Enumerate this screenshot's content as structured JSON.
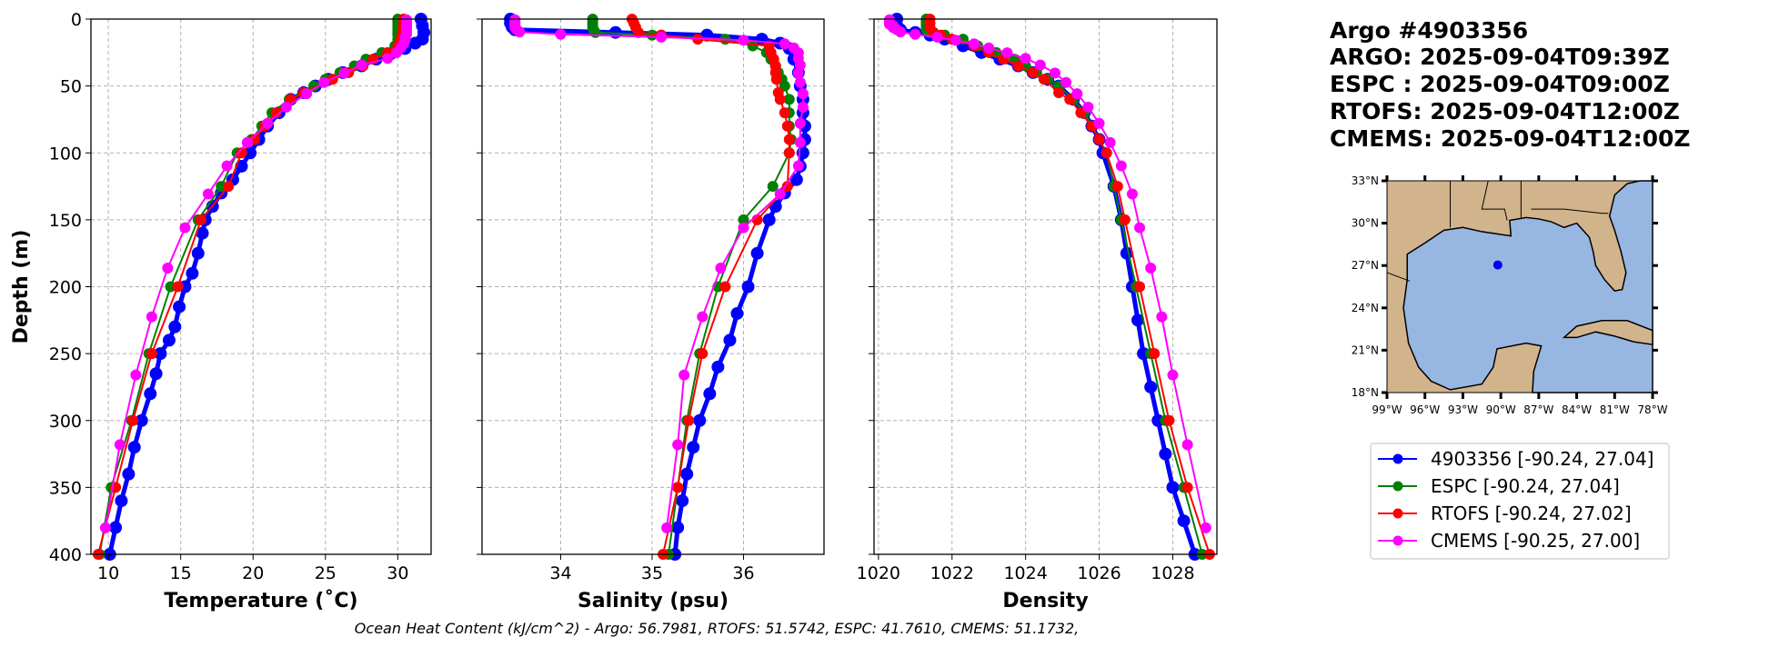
{
  "title": {
    "lines": [
      "Argo #4903356",
      "ARGO: 2025-09-04T09:39Z",
      "ESPC : 2025-09-04T09:00Z",
      "RTOFS: 2025-09-04T12:00Z",
      "CMEMS: 2025-09-04T12:00Z"
    ]
  },
  "footer": {
    "ohc_text": "Ocean Heat Content (kJ/cm^2) - Argo: 56.7981,  RTOFS: 51.5742,  ESPC: 41.7610,  CMEMS: 51.1732,"
  },
  "legend": {
    "placement": "right",
    "entries": [
      {
        "label": "4903356 [-90.24, 27.04]",
        "color": "#0000ff"
      },
      {
        "label": "ESPC [-90.24, 27.04]",
        "color": "#008000"
      },
      {
        "label": "RTOFS [-90.24, 27.02]",
        "color": "#ff0000"
      },
      {
        "label": "CMEMS [-90.25, 27.00]",
        "color": "#ff00ff"
      }
    ]
  },
  "map": {
    "lon_range": [
      -99,
      -78
    ],
    "lat_range": [
      18,
      33
    ],
    "lat_ticks": [
      "18°N",
      "21°N",
      "24°N",
      "27°N",
      "30°N",
      "33°N"
    ],
    "lon_ticks": [
      "99°W",
      "96°W",
      "93°W",
      "90°W",
      "87°W",
      "84°W",
      "81°W",
      "78°W"
    ],
    "float_position": {
      "lon": -90.24,
      "lat": 27.04
    },
    "land_color": "#d2b48c",
    "water_color": "#97b6e1",
    "marker_color": "#0000ff"
  },
  "chart_data": [
    {
      "type": "line",
      "xlabel": "Temperature (˚C)",
      "ylabel": "Depth (m)",
      "xlim": [
        8.8,
        32.3
      ],
      "ylim": [
        400,
        0
      ],
      "xticks": [
        10,
        15,
        20,
        25,
        30
      ],
      "yticks": [
        0,
        50,
        100,
        150,
        200,
        250,
        300,
        350,
        400
      ],
      "grid": true,
      "series": [
        {
          "name": "4903356",
          "color": "#0000ff",
          "depth": [
            0,
            5,
            10,
            15,
            18,
            22,
            26,
            30,
            35,
            40,
            45,
            50,
            55,
            60,
            70,
            80,
            90,
            100,
            110,
            120,
            130,
            140,
            150,
            160,
            175,
            190,
            200,
            215,
            230,
            240,
            250,
            265,
            280,
            300,
            320,
            340,
            360,
            380,
            400
          ],
          "values": [
            31.6,
            31.7,
            31.8,
            31.7,
            31.2,
            30.5,
            29.5,
            28.5,
            27.5,
            26.2,
            25.2,
            24.3,
            23.5,
            22.6,
            21.8,
            21.0,
            20.4,
            19.8,
            19.2,
            18.6,
            17.8,
            17.2,
            16.7,
            16.5,
            16.2,
            15.8,
            15.3,
            14.9,
            14.6,
            14.2,
            13.6,
            13.3,
            12.9,
            12.3,
            11.8,
            11.4,
            10.9,
            10.5,
            10.1
          ]
        },
        {
          "name": "ESPC",
          "color": "#008000",
          "depth": [
            0,
            2,
            4,
            6,
            8,
            10,
            12,
            15,
            20,
            25,
            30,
            35,
            40,
            45,
            50,
            60,
            70,
            80,
            90,
            100,
            125,
            150,
            200,
            250,
            300,
            350,
            400
          ],
          "values": [
            30.0,
            30.0,
            30.0,
            30.0,
            30.0,
            30.0,
            30.0,
            30.0,
            29.8,
            28.9,
            27.8,
            27.0,
            26.0,
            25.0,
            24.2,
            22.5,
            21.3,
            20.6,
            19.9,
            18.9,
            17.8,
            16.2,
            14.3,
            12.8,
            11.6,
            10.2,
            9.4
          ]
        },
        {
          "name": "RTOFS",
          "color": "#ff0000",
          "depth": [
            0,
            3,
            6,
            10,
            15,
            20,
            25,
            30,
            35,
            40,
            45,
            55,
            60,
            70,
            80,
            90,
            100,
            125,
            150,
            200,
            250,
            300,
            350,
            400
          ],
          "values": [
            30.4,
            30.4,
            30.4,
            30.3,
            30.2,
            30.0,
            29.3,
            28.3,
            27.6,
            26.6,
            25.5,
            23.5,
            22.6,
            21.6,
            20.8,
            20.1,
            19.2,
            18.3,
            16.4,
            14.8,
            13.0,
            11.7,
            10.5,
            9.3
          ]
        },
        {
          "name": "CMEMS",
          "color": "#ff00ff",
          "depth": [
            0.5,
            1.5,
            2.6,
            3.8,
            5.1,
            6.4,
            7.9,
            9.6,
            11.4,
            13.5,
            15.8,
            18.5,
            21.6,
            25.2,
            29.4,
            34.4,
            40.3,
            47.4,
            55.8,
            65.8,
            77.9,
            92.3,
            109.7,
            130.7,
            155.9,
            186.1,
            222.5,
            266.0,
            318.1,
            380.2
          ],
          "values": [
            30.6,
            30.6,
            30.6,
            30.6,
            30.6,
            30.6,
            30.6,
            30.6,
            30.6,
            30.5,
            30.5,
            30.4,
            30.2,
            29.9,
            29.3,
            27.5,
            26.3,
            24.9,
            23.7,
            22.3,
            21.0,
            19.6,
            18.2,
            16.9,
            15.3,
            14.1,
            13.0,
            11.9,
            10.8,
            9.8
          ]
        }
      ]
    },
    {
      "type": "line",
      "xlabel": "Salinity (psu)",
      "ylabel": "",
      "xlim": [
        33.14,
        36.88
      ],
      "ylim": [
        400,
        0
      ],
      "xticks": [
        34,
        35,
        36
      ],
      "yticks": [
        0,
        50,
        100,
        150,
        200,
        250,
        300,
        350,
        400
      ],
      "grid": true,
      "series": [
        {
          "name": "4903356",
          "color": "#0000ff",
          "depth": [
            0,
            3,
            6,
            8,
            10,
            12,
            15,
            18,
            22,
            30,
            40,
            50,
            60,
            70,
            80,
            90,
            100,
            110,
            120,
            130,
            140,
            150,
            175,
            200,
            220,
            240,
            260,
            280,
            300,
            320,
            340,
            360,
            380,
            400
          ],
          "values": [
            33.45,
            33.45,
            33.47,
            33.5,
            34.6,
            35.6,
            36.2,
            36.4,
            36.5,
            36.55,
            36.6,
            36.62,
            36.65,
            36.65,
            36.67,
            36.67,
            36.65,
            36.62,
            36.58,
            36.45,
            36.35,
            36.28,
            36.15,
            36.05,
            35.93,
            35.85,
            35.72,
            35.63,
            35.52,
            35.45,
            35.38,
            35.33,
            35.28,
            35.25
          ]
        },
        {
          "name": "ESPC",
          "color": "#008000",
          "depth": [
            0,
            2,
            4,
            6,
            8,
            10,
            12,
            15,
            20,
            25,
            30,
            35,
            40,
            45,
            50,
            60,
            70,
            80,
            90,
            100,
            125,
            150,
            200,
            250,
            300,
            350,
            400
          ],
          "values": [
            34.35,
            34.35,
            34.35,
            34.35,
            34.36,
            34.38,
            35.0,
            35.8,
            36.1,
            36.25,
            36.3,
            36.35,
            36.38,
            36.42,
            36.45,
            36.5,
            36.5,
            36.5,
            36.52,
            36.5,
            36.32,
            36.0,
            35.72,
            35.52,
            35.38,
            35.28,
            35.18
          ]
        },
        {
          "name": "RTOFS",
          "color": "#ff0000",
          "depth": [
            0,
            3,
            6,
            10,
            12,
            15,
            20,
            25,
            30,
            35,
            40,
            45,
            55,
            60,
            70,
            80,
            90,
            100,
            125,
            150,
            200,
            250,
            300,
            350,
            400
          ],
          "values": [
            34.78,
            34.8,
            34.82,
            34.85,
            35.1,
            35.5,
            36.28,
            36.3,
            36.33,
            36.35,
            36.35,
            36.36,
            36.38,
            36.4,
            36.45,
            36.48,
            36.5,
            36.5,
            36.48,
            36.15,
            35.8,
            35.55,
            35.4,
            35.28,
            35.12
          ]
        },
        {
          "name": "CMEMS",
          "color": "#ff00ff",
          "depth": [
            0.5,
            1.5,
            2.6,
            3.8,
            5.1,
            6.4,
            7.9,
            9.6,
            11.4,
            13.5,
            15.8,
            18.5,
            21.6,
            25.2,
            29.4,
            34.4,
            40.3,
            47.4,
            55.8,
            65.8,
            77.9,
            92.3,
            109.7,
            130.7,
            155.9,
            186.1,
            222.5,
            266.0,
            318.1,
            380.2
          ],
          "values": [
            33.5,
            33.5,
            33.5,
            33.5,
            33.5,
            33.5,
            33.52,
            33.55,
            34.0,
            35.1,
            36.0,
            36.45,
            36.55,
            36.6,
            36.6,
            36.62,
            36.6,
            36.62,
            36.65,
            36.65,
            36.62,
            36.62,
            36.6,
            36.4,
            36.0,
            35.75,
            35.55,
            35.35,
            35.28,
            35.16
          ]
        }
      ]
    },
    {
      "type": "line",
      "xlabel": "Density",
      "ylabel": "",
      "xlim": [
        1019.88,
        1029.2
      ],
      "ylim": [
        400,
        0
      ],
      "xticks": [
        1020,
        1022,
        1024,
        1026,
        1028
      ],
      "yticks": [
        0,
        50,
        100,
        150,
        200,
        250,
        300,
        350,
        400
      ],
      "grid": true,
      "series": [
        {
          "name": "4903356",
          "color": "#0000ff",
          "depth": [
            0,
            5,
            8,
            10,
            12,
            15,
            20,
            25,
            30,
            35,
            40,
            45,
            50,
            60,
            70,
            80,
            90,
            100,
            125,
            150,
            175,
            200,
            225,
            250,
            275,
            300,
            325,
            350,
            375,
            400
          ],
          "values": [
            1020.5,
            1020.5,
            1020.6,
            1021.0,
            1021.4,
            1021.8,
            1022.3,
            1022.8,
            1023.3,
            1023.8,
            1024.2,
            1024.6,
            1024.9,
            1025.3,
            1025.6,
            1025.8,
            1026.0,
            1026.1,
            1026.4,
            1026.6,
            1026.75,
            1026.9,
            1027.05,
            1027.2,
            1027.4,
            1027.6,
            1027.8,
            1028.0,
            1028.3,
            1028.6
          ]
        },
        {
          "name": "ESPC",
          "color": "#008000",
          "depth": [
            0,
            2,
            4,
            6,
            8,
            10,
            12,
            15,
            20,
            25,
            30,
            35,
            40,
            45,
            50,
            60,
            70,
            80,
            90,
            100,
            125,
            150,
            200,
            250,
            300,
            350,
            400
          ],
          "values": [
            1021.3,
            1021.3,
            1021.3,
            1021.3,
            1021.3,
            1021.4,
            1021.8,
            1022.3,
            1022.7,
            1023.2,
            1023.7,
            1024.0,
            1024.3,
            1024.6,
            1024.9,
            1025.3,
            1025.6,
            1025.8,
            1026.0,
            1026.2,
            1026.4,
            1026.6,
            1027.0,
            1027.4,
            1027.8,
            1028.3,
            1028.8
          ]
        },
        {
          "name": "RTOFS",
          "color": "#ff0000",
          "depth": [
            0,
            3,
            6,
            10,
            12,
            15,
            20,
            25,
            30,
            35,
            40,
            45,
            55,
            60,
            70,
            80,
            90,
            100,
            125,
            150,
            200,
            250,
            300,
            350,
            400
          ],
          "values": [
            1021.4,
            1021.4,
            1021.4,
            1021.5,
            1021.7,
            1022.0,
            1022.6,
            1023.0,
            1023.4,
            1023.8,
            1024.2,
            1024.5,
            1024.9,
            1025.2,
            1025.5,
            1025.8,
            1026.0,
            1026.2,
            1026.5,
            1026.7,
            1027.1,
            1027.5,
            1027.9,
            1028.4,
            1029.0
          ]
        },
        {
          "name": "CMEMS",
          "color": "#ff00ff",
          "depth": [
            0.5,
            1.5,
            2.6,
            3.8,
            5.1,
            6.4,
            7.9,
            9.6,
            11.4,
            13.5,
            15.8,
            18.5,
            21.6,
            25.2,
            29.4,
            34.4,
            40.3,
            47.4,
            55.8,
            65.8,
            77.9,
            92.3,
            109.7,
            130.7,
            155.9,
            186.1,
            222.5,
            266.0,
            318.1,
            380.2
          ],
          "values": [
            1020.3,
            1020.3,
            1020.3,
            1020.3,
            1020.4,
            1020.4,
            1020.5,
            1020.6,
            1021.0,
            1021.6,
            1022.1,
            1022.6,
            1023.0,
            1023.5,
            1024.0,
            1024.4,
            1024.8,
            1025.1,
            1025.4,
            1025.7,
            1026.0,
            1026.3,
            1026.6,
            1026.9,
            1027.1,
            1027.4,
            1027.7,
            1028.0,
            1028.4,
            1028.9
          ]
        }
      ]
    }
  ]
}
